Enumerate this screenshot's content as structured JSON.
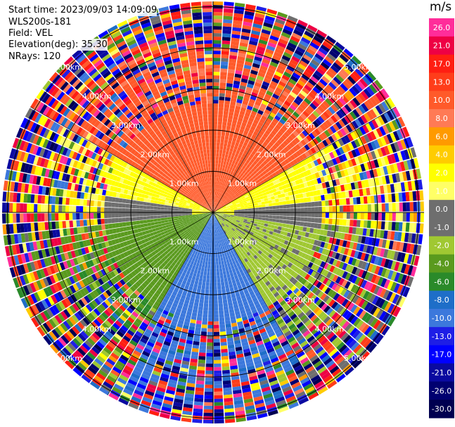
{
  "header": {
    "start_time": "Start time: 2023/09/03 14:09:09",
    "instrument": "WLS200s-181",
    "field": "Field: VEL",
    "elevation": "Elevation(deg): 35.30",
    "nrays": "NRays: 120"
  },
  "chart_data": {
    "type": "heatmap",
    "projection": "polar-ppi",
    "field": "VEL",
    "n_rays": 120,
    "range_rings_km": [
      1.0,
      2.0,
      3.0,
      4.0,
      5.0
    ],
    "ring_labels": [
      "1.00km",
      "2.00km",
      "3.00km",
      "4.00km",
      "5.00km"
    ],
    "colorbar": {
      "unit": "m/s",
      "tick_labels": [
        "26.0",
        "21.0",
        "17.0",
        "13.0",
        "10.0",
        "8.0",
        "6.0",
        "4.0",
        "2.0",
        "1.0",
        "0.0",
        "-1.0",
        "-2.0",
        "-4.0",
        "-6.0",
        "-8.0",
        "-10.0",
        "-13.0",
        "-17.0",
        "-21.0",
        "-26.0",
        "-30.0"
      ],
      "colors": [
        "#ff2d9a",
        "#ee0044",
        "#ff1e12",
        "#ff3d1a",
        "#ff5a2a",
        "#ff7a55",
        "#ff9a00",
        "#ffcc00",
        "#ffff00",
        "#ffff66",
        "#6e6e6e",
        "#6e6e6e",
        "#a0c832",
        "#5a9a1e",
        "#2a8a2a",
        "#1e6ec8",
        "#3c78dc",
        "#1e1ee6",
        "#0000ff",
        "#0a0aa0",
        "#000070",
        "#000050"
      ]
    },
    "sectors": [
      {
        "azimuth_range_deg": [
          300,
          60
        ],
        "velocity_ms": 10.0
      },
      {
        "azimuth_range_deg": [
          60,
          95
        ],
        "velocity_ms": 2.0
      },
      {
        "azimuth_range_deg": [
          265,
          300
        ],
        "velocity_ms": 2.0
      },
      {
        "azimuth_range_deg": [
          95,
          150
        ],
        "velocity_ms": -2.0
      },
      {
        "azimuth_range_deg": [
          210,
          265
        ],
        "velocity_ms": -4.0
      },
      {
        "azimuth_range_deg": [
          150,
          210
        ],
        "velocity_ms": -10.0
      }
    ]
  }
}
